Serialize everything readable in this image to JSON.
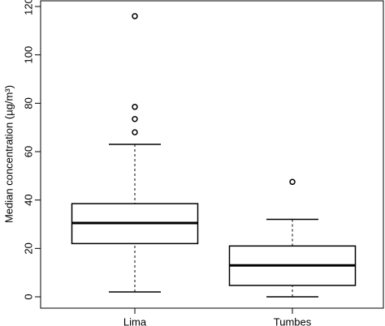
{
  "chart_data": {
    "type": "boxplot",
    "y_label": "Median concentration (µg/m³)",
    "categories": [
      "Lima",
      "Tumbes"
    ],
    "boxes": [
      {
        "whislo": 2,
        "q1": 22,
        "med": 30.5,
        "q3": 38.5,
        "whishi": 63,
        "fliers": [
          68,
          73.5,
          78.5,
          116
        ]
      },
      {
        "whislo": 0,
        "q1": 4.7,
        "med": 13,
        "q3": 21,
        "whishi": 32,
        "fliers": [
          47.5
        ]
      }
    ],
    "ylim": [
      0,
      120
    ],
    "yticks": [
      0,
      20,
      40,
      60,
      80,
      100,
      120
    ],
    "color": "#000000"
  }
}
